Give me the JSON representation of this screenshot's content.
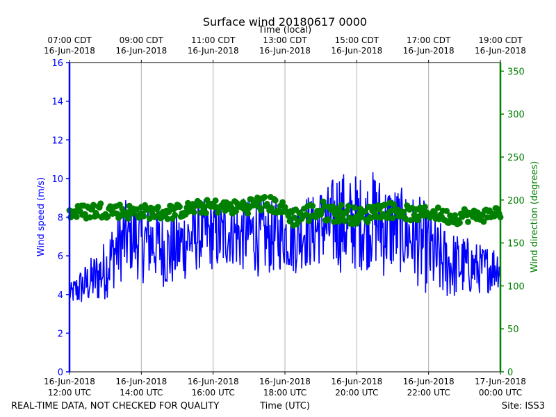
{
  "chart_data": {
    "type": "line",
    "title": "Surface wind 20180617 0000",
    "top_axis_label": "Time (local)",
    "top_ticks": [
      {
        "x": 0,
        "line1": "07:00 CDT",
        "line2": "16-Jun-2018"
      },
      {
        "x": 2,
        "line1": "09:00 CDT",
        "line2": "16-Jun-2018"
      },
      {
        "x": 4,
        "line1": "11:00 CDT",
        "line2": "16-Jun-2018"
      },
      {
        "x": 6,
        "line1": "13:00 CDT",
        "line2": "16-Jun-2018"
      },
      {
        "x": 8,
        "line1": "15:00 CDT",
        "line2": "16-Jun-2018"
      },
      {
        "x": 10,
        "line1": "17:00 CDT",
        "line2": "16-Jun-2018"
      },
      {
        "x": 12,
        "line1": "19:00 CDT",
        "line2": "16-Jun-2018"
      }
    ],
    "bottom_ticks": [
      {
        "x": 0,
        "line1": "16-Jun-2018",
        "line2": "12:00 UTC"
      },
      {
        "x": 2,
        "line1": "16-Jun-2018",
        "line2": "14:00 UTC"
      },
      {
        "x": 4,
        "line1": "16-Jun-2018",
        "line2": "16:00 UTC"
      },
      {
        "x": 6,
        "line1": "16-Jun-2018",
        "line2": "18:00 UTC"
      },
      {
        "x": 8,
        "line1": "16-Jun-2018",
        "line2": "20:00 UTC"
      },
      {
        "x": 10,
        "line1": "16-Jun-2018",
        "line2": "22:00 UTC"
      },
      {
        "x": 12,
        "line1": "17-Jun-2018",
        "line2": "00:00 UTC"
      }
    ],
    "xlabel": "Time (UTC)",
    "xlim": [
      0,
      12
    ],
    "ylabel_left": "Wind speed (m/s)",
    "ylim_left": [
      0,
      16
    ],
    "yticks_left": [
      0,
      2,
      4,
      6,
      8,
      10,
      12,
      14,
      16
    ],
    "ylabel_right": "Wind direction (degrees)",
    "ylim_right": [
      0,
      360
    ],
    "yticks_right": [
      0,
      50,
      100,
      150,
      200,
      250,
      300,
      350
    ],
    "grid": "vertical",
    "series": [
      {
        "color": "#0000ff",
        "axis": "left",
        "style": "line",
        "x": [
          0,
          0.25,
          0.5,
          0.75,
          1,
          1.25,
          1.5,
          1.75,
          2,
          2.25,
          2.5,
          2.75,
          3,
          3.25,
          3.5,
          3.75,
          4,
          4.25,
          4.5,
          4.75,
          5,
          5.25,
          5.5,
          5.75,
          6,
          6.25,
          6.5,
          6.75,
          7,
          7.25,
          7.5,
          7.75,
          8,
          8.25,
          8.5,
          8.75,
          9,
          9.25,
          9.5,
          9.75,
          10,
          10.25,
          10.5,
          10.75,
          11,
          11.25,
          11.5,
          11.75,
          12
        ],
        "values": [
          4.0,
          4.3,
          4.6,
          4.9,
          5.3,
          6.2,
          6.8,
          7.0,
          6.6,
          6.8,
          6.5,
          6.2,
          6.4,
          6.8,
          7.0,
          7.2,
          7.1,
          7.0,
          7.3,
          7.0,
          7.2,
          7.0,
          6.9,
          7.0,
          7.1,
          6.9,
          7.4,
          7.2,
          7.6,
          7.5,
          8.0,
          7.5,
          7.8,
          7.6,
          8.0,
          7.4,
          7.5,
          7.3,
          7.0,
          6.7,
          6.3,
          5.8,
          5.6,
          5.5,
          5.5,
          5.4,
          5.3,
          5.4,
          5.5
        ],
        "spread": [
          0.3,
          0.6,
          0.7,
          0.9,
          1.0,
          1.2,
          1.3,
          1.2,
          1.3,
          1.3,
          1.2,
          1.3,
          1.2,
          1.3,
          1.2,
          1.1,
          1.2,
          1.2,
          1.1,
          1.2,
          1.2,
          1.3,
          1.2,
          1.2,
          1.1,
          1.2,
          1.3,
          1.2,
          1.3,
          1.4,
          1.8,
          1.6,
          1.6,
          1.5,
          1.6,
          1.6,
          1.5,
          1.4,
          1.4,
          1.5,
          1.5,
          1.3,
          1.2,
          1.1,
          1.0,
          0.9,
          0.8,
          0.8,
          0.7
        ]
      },
      {
        "color": "#008000",
        "axis": "right",
        "style": "markers",
        "x": [
          0,
          0.25,
          0.5,
          0.75,
          1,
          1.25,
          1.5,
          1.75,
          2,
          2.25,
          2.5,
          2.75,
          3,
          3.25,
          3.5,
          3.75,
          4,
          4.25,
          4.5,
          4.75,
          5,
          5.25,
          5.5,
          5.75,
          6,
          6.25,
          6.5,
          6.75,
          7,
          7.25,
          7.5,
          7.75,
          8,
          8.25,
          8.5,
          8.75,
          9,
          9.25,
          9.5,
          9.75,
          10,
          10.25,
          10.5,
          10.75,
          11,
          11.25,
          11.5,
          11.75,
          12
        ],
        "values": [
          185,
          186,
          187,
          188,
          189,
          188,
          187,
          186,
          187,
          186,
          185,
          186,
          187,
          189,
          191,
          192,
          193,
          192,
          191,
          192,
          194,
          196,
          195,
          194,
          187,
          180,
          183,
          186,
          187,
          186,
          185,
          184,
          181,
          182,
          188,
          189,
          188,
          187,
          184,
          183,
          186,
          184,
          181,
          179,
          183,
          181,
          182,
          184,
          187
        ],
        "spread": [
          5,
          5,
          6,
          6,
          6,
          5,
          6,
          5,
          5,
          5,
          5,
          6,
          5,
          5,
          5,
          5,
          5,
          5,
          5,
          5,
          6,
          6,
          6,
          6,
          6,
          7,
          7,
          7,
          8,
          7,
          7,
          7,
          6,
          6,
          6,
          6,
          6,
          6,
          5,
          5,
          5,
          5,
          5,
          5,
          5,
          5,
          5,
          5,
          5
        ]
      }
    ]
  },
  "footer": {
    "left": "REAL-TIME DATA, NOT CHECKED FOR QUALITY",
    "center": "Time (UTC)",
    "right": "Site: ISS3"
  }
}
